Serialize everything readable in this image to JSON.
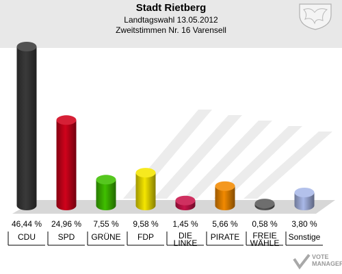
{
  "header": {
    "title": "Stadt Rietberg",
    "subtitle": "Landtagswahl 13.05.2012",
    "subtitle2": "Zweitstimmen Nr. 16 Varensell"
  },
  "branding": {
    "line1": "VOTE",
    "line2": "MANAGER"
  },
  "chart_data": {
    "type": "bar",
    "categories": [
      "CDU",
      "SPD",
      "GRÜNE",
      "FDP",
      "DIE LINKE",
      "PIRATE",
      "FREIE WÄHLE",
      "Sonstige"
    ],
    "category_lines": [
      [
        "CDU"
      ],
      [
        "SPD"
      ],
      [
        "GRÜNE"
      ],
      [
        "FDP"
      ],
      [
        "DIE",
        "LINKE"
      ],
      [
        "PIRATE"
      ],
      [
        "FREIE",
        "WÄHLE"
      ],
      [
        "Sonstige"
      ]
    ],
    "values": [
      46.44,
      24.96,
      7.55,
      9.58,
      1.45,
      5.66,
      0.58,
      3.8
    ],
    "value_labels": [
      "46,44 %",
      "24,96 %",
      "7,55 %",
      "9,58 %",
      "1,45 %",
      "5,66 %",
      "0,58 %",
      "3,80 %"
    ],
    "colors": [
      "#3a3a3a",
      "#d0021b",
      "#3fbf00",
      "#f5e600",
      "#c8144a",
      "#f28a00",
      "#5a5a5a",
      "#a9b8e8"
    ],
    "ylim": [
      0,
      46.44
    ]
  }
}
